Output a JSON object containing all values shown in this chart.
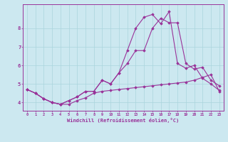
{
  "xlabel": "Windchill (Refroidissement éolien,°C)",
  "bg_color": "#cce8f0",
  "line_color": "#993399",
  "grid_color": "#aad4dd",
  "x_values": [
    0,
    1,
    2,
    3,
    4,
    5,
    6,
    7,
    8,
    9,
    10,
    11,
    12,
    13,
    14,
    15,
    16,
    17,
    18,
    19,
    20,
    21,
    22,
    23
  ],
  "line1": [
    4.7,
    4.5,
    4.2,
    4.0,
    3.9,
    3.9,
    4.1,
    4.25,
    4.5,
    4.6,
    4.65,
    4.7,
    4.75,
    4.8,
    4.85,
    4.9,
    4.95,
    5.0,
    5.05,
    5.1,
    5.2,
    5.35,
    5.5,
    4.6
  ],
  "line2": [
    4.7,
    4.5,
    4.2,
    4.0,
    3.9,
    4.1,
    4.3,
    4.6,
    4.6,
    5.2,
    5.0,
    5.6,
    6.1,
    6.8,
    6.8,
    8.0,
    8.55,
    8.3,
    8.3,
    6.1,
    5.8,
    5.9,
    5.2,
    4.9
  ],
  "line3": [
    4.7,
    4.5,
    4.2,
    4.0,
    3.9,
    4.1,
    4.3,
    4.6,
    4.6,
    5.2,
    5.0,
    5.6,
    6.8,
    8.0,
    8.6,
    8.75,
    8.25,
    8.9,
    6.1,
    5.85,
    6.0,
    5.3,
    5.0,
    4.65
  ],
  "ylim": [
    3.55,
    9.3
  ],
  "xlim": [
    -0.5,
    23.5
  ],
  "yticks": [
    4,
    5,
    6,
    7,
    8
  ],
  "xticks": [
    0,
    1,
    2,
    3,
    4,
    5,
    6,
    7,
    8,
    9,
    10,
    11,
    12,
    13,
    14,
    15,
    16,
    17,
    18,
    19,
    20,
    21,
    22,
    23
  ]
}
